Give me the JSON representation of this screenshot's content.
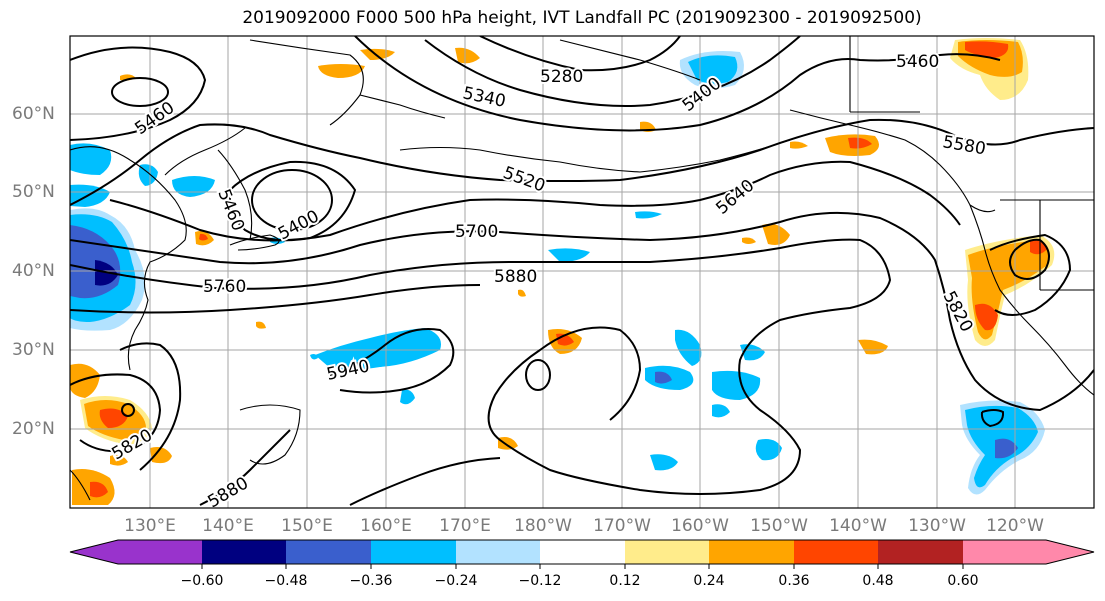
{
  "title": "2019092000 F000 500 hPa height, IVT Landfall PC (2019092300 - 2019092500)",
  "latitude_labels": [
    "60°N",
    "50°N",
    "40°N",
    "30°N",
    "20°N"
  ],
  "longitude_labels": [
    "130°E",
    "140°E",
    "150°E",
    "160°E",
    "170°E",
    "180°W",
    "170°W",
    "160°W",
    "150°W",
    "140°W",
    "130°W",
    "120°W"
  ],
  "contour_labels": [
    "5460",
    "5280",
    "5340",
    "5400",
    "5460",
    "5580",
    "5520",
    "5640",
    "5400",
    "5460",
    "5700",
    "5880",
    "5760",
    "5820",
    "5940",
    "5820",
    "5880"
  ],
  "colorbar": {
    "tick_labels": [
      "−0.60",
      "−0.48",
      "−0.36",
      "−0.24",
      "−0.12",
      "0.12",
      "0.24",
      "0.36",
      "0.48",
      "0.60"
    ],
    "colors": [
      "#9933cc",
      "#000080",
      "#3a5fcd",
      "#00bfff",
      "#b2e2ff",
      "#ffffff",
      "#ffec8b",
      "#ffa500",
      "#ff4500",
      "#b22222",
      "#ff88aa"
    ]
  }
}
